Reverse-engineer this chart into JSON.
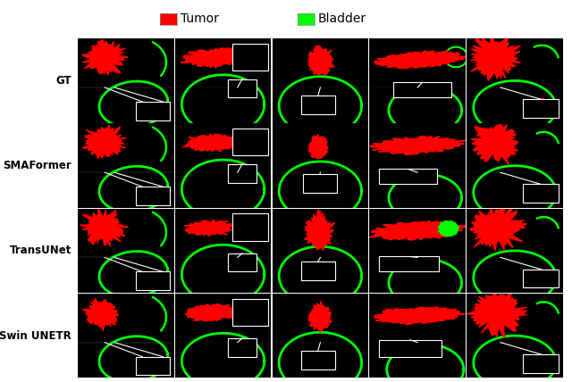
{
  "legend_items": [
    {
      "label": "Tumor",
      "color": "#FF0000"
    },
    {
      "label": "Bladder",
      "color": "#00FF00"
    }
  ],
  "row_labels": [
    "GT",
    "SMAFormer",
    "TransUNet",
    "Swin UNETR"
  ],
  "n_rows": 4,
  "n_cols": 5,
  "bg_color": "#000000",
  "tumor_color": "#FF0000",
  "bladder_color": "#00FF00",
  "white_color": "#FFFFFF",
  "figure_bg": "#FFFFFF",
  "legend_fontsize": 10,
  "row_label_fontsize": 9
}
